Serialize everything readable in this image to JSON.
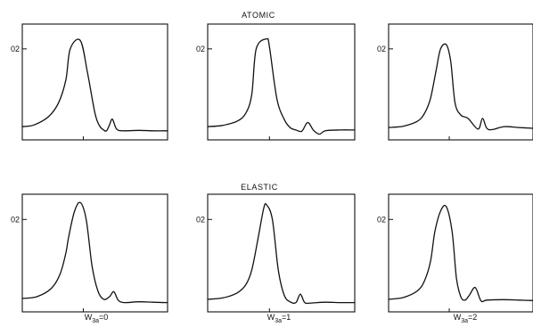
{
  "figure": {
    "row_titles": [
      "ATOMIC",
      "ELASTIC"
    ],
    "column_labels": [
      {
        "base": "W",
        "sub": "3a",
        "rest": "=0"
      },
      {
        "base": "W",
        "sub": "3a",
        "rest": "=1"
      },
      {
        "base": "W",
        "sub": "3a",
        "rest": "=2"
      }
    ],
    "y_tick_label": "02"
  },
  "chart_data": [
    {
      "type": "line",
      "row_title": "ATOMIC",
      "column_label": "W3a=0",
      "y_tick": 0.2,
      "grid": false,
      "series": [
        {
          "x": [
            0,
            0.08,
            0.18,
            0.25,
            0.3,
            0.33,
            0.4,
            0.45,
            0.5,
            0.53,
            0.56,
            0.58,
            0.6,
            0.62,
            0.65,
            0.7,
            0.8,
            0.9,
            1
          ],
          "y": [
            0.012,
            0.016,
            0.036,
            0.07,
            0.125,
            0.2,
            0.22,
            0.14,
            0.045,
            0.015,
            0.004,
            0.002,
            0.016,
            0.03,
            0.006,
            0.002,
            0.003,
            0.002,
            0.002
          ]
        }
      ]
    },
    {
      "type": "line",
      "row_title": "ATOMIC",
      "column_label": "W3a=1",
      "y_tick": 0.2,
      "grid": false,
      "series": [
        {
          "x": [
            0,
            0.1,
            0.2,
            0.26,
            0.3,
            0.33,
            0.4,
            0.42,
            0.47,
            0.52,
            0.56,
            0.6,
            0.64,
            0.68,
            0.72,
            0.76,
            0.8,
            0.9,
            1
          ],
          "y": [
            0.012,
            0.015,
            0.025,
            0.045,
            0.09,
            0.2,
            0.224,
            0.205,
            0.08,
            0.03,
            0.01,
            0.004,
            0.001,
            0.022,
            0.003,
            -0.006,
            0.002,
            0.004,
            0.004
          ]
        }
      ]
    },
    {
      "type": "line",
      "row_title": "ATOMIC",
      "column_label": "W3a=2",
      "y_tick": 0.2,
      "grid": false,
      "series": [
        {
          "x": [
            0,
            0.1,
            0.2,
            0.25,
            0.29,
            0.33,
            0.36,
            0.4,
            0.43,
            0.46,
            0.5,
            0.55,
            0.62,
            0.65,
            0.68,
            0.72,
            0.8,
            0.9,
            1
          ],
          "y": [
            0.01,
            0.013,
            0.025,
            0.045,
            0.08,
            0.15,
            0.2,
            0.21,
            0.17,
            0.07,
            0.04,
            0.032,
            0.006,
            0.032,
            0.008,
            0.005,
            0.012,
            0.01,
            0.008
          ]
        }
      ]
    },
    {
      "type": "line",
      "row_title": "ELASTIC",
      "column_label": "W3a=0",
      "y_tick": 0.2,
      "grid": false,
      "series": [
        {
          "x": [
            0,
            0.1,
            0.2,
            0.26,
            0.3,
            0.32,
            0.36,
            0.4,
            0.44,
            0.48,
            0.52,
            0.56,
            0.6,
            0.63,
            0.66,
            0.7,
            0.8,
            0.9,
            1
          ],
          "y": [
            0.012,
            0.016,
            0.036,
            0.07,
            0.12,
            0.16,
            0.22,
            0.24,
            0.2,
            0.09,
            0.03,
            0.01,
            0.016,
            0.028,
            0.008,
            0.002,
            0.004,
            0.003,
            0.002
          ]
        }
      ]
    },
    {
      "type": "line",
      "row_title": "ELASTIC",
      "column_label": "W3a=1",
      "y_tick": 0.2,
      "grid": false,
      "series": [
        {
          "x": [
            0,
            0.1,
            0.2,
            0.26,
            0.3,
            0.34,
            0.38,
            0.4,
            0.44,
            0.48,
            0.52,
            0.56,
            0.6,
            0.63,
            0.66,
            0.7,
            0.8,
            0.9,
            1
          ],
          "y": [
            0.01,
            0.013,
            0.025,
            0.045,
            0.08,
            0.15,
            0.225,
            0.235,
            0.2,
            0.08,
            0.02,
            0.004,
            0.002,
            0.022,
            0.002,
            0.001,
            0.003,
            0.002,
            0.002
          ]
        }
      ]
    },
    {
      "type": "line",
      "row_title": "ELASTIC",
      "column_label": "W3a=2",
      "y_tick": 0.2,
      "grid": false,
      "series": [
        {
          "x": [
            0,
            0.1,
            0.2,
            0.25,
            0.29,
            0.32,
            0.36,
            0.4,
            0.44,
            0.47,
            0.5,
            0.53,
            0.56,
            0.6,
            0.64,
            0.68,
            0.8,
            0.9,
            1
          ],
          "y": [
            0.01,
            0.014,
            0.03,
            0.055,
            0.1,
            0.17,
            0.22,
            0.23,
            0.17,
            0.06,
            0.016,
            0.008,
            0.02,
            0.038,
            0.006,
            0.008,
            0.009,
            0.008,
            0.007
          ]
        }
      ]
    }
  ]
}
